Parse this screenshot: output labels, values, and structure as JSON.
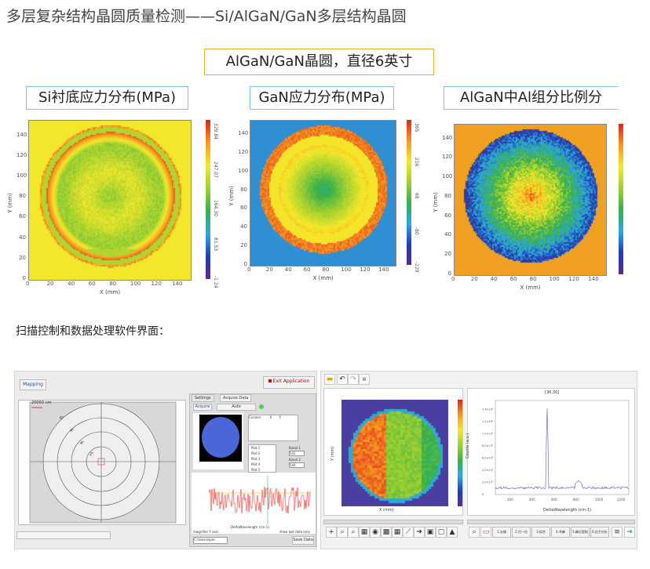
{
  "title": "多层复杂结构晶圆质量检测——Si/AlGaN/GaN多层结构晶圆",
  "wafer_label": "AlGaN/GaN晶圆，直径6英寸",
  "maps": [
    {
      "label": "Si衬底应力分布(MPa)",
      "xlabel": "X (mm)",
      "ylabel": "Y (mm)",
      "xticks": [
        "0",
        "20",
        "40",
        "60",
        "80",
        "100",
        "120",
        "140"
      ],
      "yticks": [
        "0",
        "20",
        "40",
        "60",
        "80",
        "100",
        "120",
        "140"
      ],
      "colorbar": [
        "-1.24",
        "81.53",
        "164.30",
        "247.07",
        "329.84"
      ],
      "background": "#f2e72a"
    },
    {
      "label": "GaN应力分布(MPa)",
      "xlabel": "X (mm)",
      "ylabel": "Y (mm)",
      "xticks": [
        "0",
        "20",
        "40",
        "60",
        "80",
        "100",
        "120",
        "140"
      ],
      "yticks": [
        "0",
        "20",
        "40",
        "60",
        "80",
        "100",
        "120",
        "140"
      ],
      "colorbar": [
        "-229",
        "-80",
        "68",
        "216",
        "365"
      ],
      "background": "#2f8fd2"
    },
    {
      "label": "AlGaN中Al组分比例分",
      "xlabel": "X (mm)",
      "ylabel": "Y (mm)",
      "xticks": [
        "0",
        "20",
        "40",
        "60",
        "80",
        "100",
        "120",
        "140"
      ],
      "yticks": [
        "0",
        "20",
        "40",
        "60",
        "80",
        "100",
        "120",
        "140"
      ],
      "colorbar": [],
      "background": "#f0a020"
    }
  ],
  "software_caption": "扫描控制和数据处理软件界面：",
  "sw_left": {
    "mapping_button": "Mapping",
    "exit_button": "Exit Application",
    "tabs": [
      "Settings",
      "Acquire Data"
    ],
    "acquire_button": "Acquire",
    "mode_select": "Auto",
    "scale_label": "20000 um",
    "ring_labels": [
      "6\"",
      "4\"",
      "4\"",
      "2\""
    ],
    "cursor_header": [
      "Cursors",
      "X",
      "Y"
    ],
    "plots": [
      "Plot 1",
      "Plot 2",
      "Plot 3",
      "Plot 4",
      "Plot 5"
    ],
    "cursor_labels": [
      "Kanal 1",
      "Kanal 2"
    ],
    "cursor_values": [
      "541",
      "544"
    ],
    "spectrum_xlabel": "DeltaWavelength (cm-1)",
    "spectrum_ylabel": "Counts (a.u.)",
    "magnifier": "magnifier Y axis",
    "show_last": "show last data only",
    "path": "C:\\Users\\spec",
    "save_button": "Save Data"
  },
  "sw_right": {
    "spectrum_title": "[30,30]",
    "map_xlabel": "X (mm)",
    "map_ylabel": "Y (mm)",
    "map_ticks": [
      "0",
      "10",
      "20",
      "30",
      "40",
      "50",
      "60"
    ],
    "spectrum_xlabel": "DeltaWavelength (cm-1)",
    "spectrum_ylabel": "Counts (a.u.)",
    "spectrum_xticks": [
      "200",
      "400",
      "600",
      "800",
      "1000",
      "1200"
    ],
    "spectrum_yticks": [
      "0",
      "2.0×10³",
      "4.0×10³",
      "6.0×10³",
      "8.0×10³",
      "1.0×10⁴",
      "1.2×10⁴",
      "1.4×10⁴"
    ],
    "buttons": [
      "1.去噪",
      "2.归一化",
      "3.拟合",
      "4.寻峰",
      "5.峰位提取",
      "6.应力分析"
    ]
  }
}
